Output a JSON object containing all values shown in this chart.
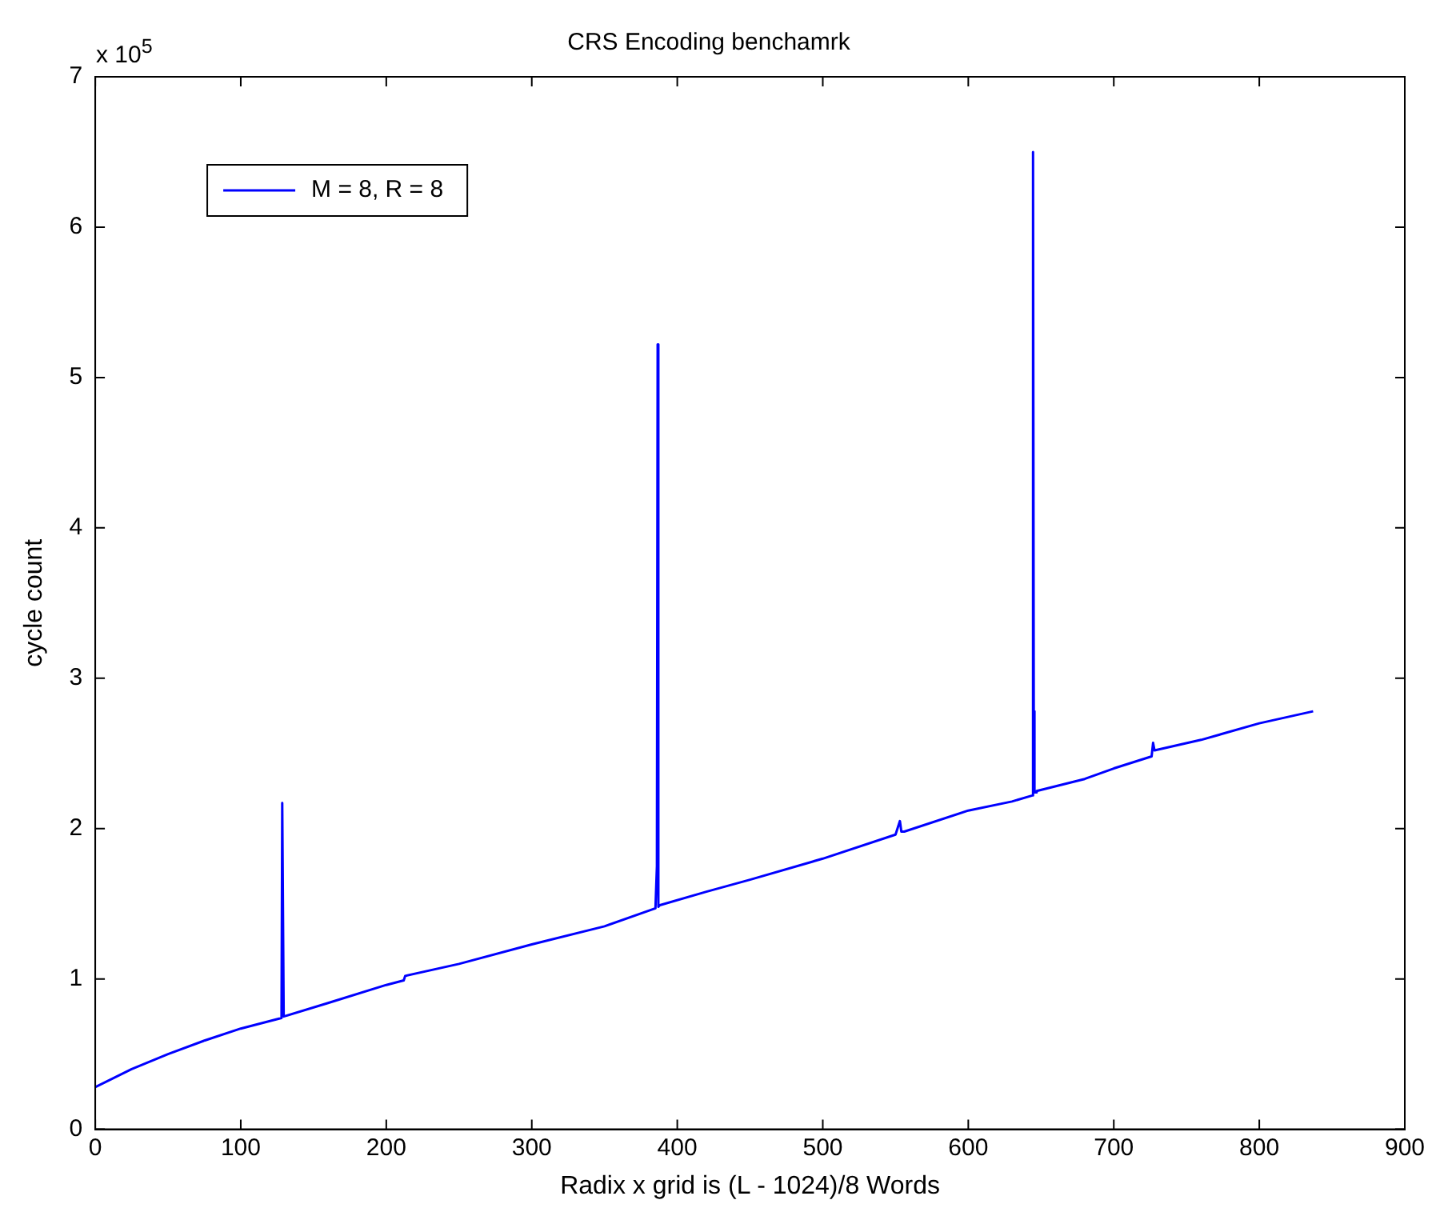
{
  "chart_data": {
    "type": "line",
    "title": "CRS Encoding benchamrk",
    "xlabel": "Radix x grid is (L - 1024)/8 Words",
    "ylabel": "cycle count",
    "annotations": [
      "x 10$^{5}$"
    ],
    "xlim": [
      0,
      900
    ],
    "xticks": [
      0,
      100,
      200,
      300,
      400,
      500,
      600,
      700,
      800,
      900
    ],
    "ylim": [
      0,
      7
    ],
    "yticks": [
      0,
      1,
      2,
      3,
      4,
      5,
      6,
      7
    ],
    "grid": false,
    "legend": "top left",
    "marker": "none",
    "line_style": "solid",
    "series": [
      {
        "name": "M = 8, R = 8",
        "color": "#0000ff",
        "x": [
          0,
          25,
          50,
          75,
          100,
          128,
          128.5,
          129,
          129.5,
          130,
          160,
          200,
          212,
          213,
          250,
          300,
          350,
          385,
          386,
          386.5,
          387,
          388,
          420,
          450,
          500,
          550,
          553,
          554,
          556,
          600,
          630,
          644,
          644.5,
          645,
          645.5,
          646,
          647,
          680,
          700,
          726,
          727,
          728,
          760,
          800,
          837
        ],
        "values": [
          0.28,
          0.4,
          0.5,
          0.59,
          0.67,
          0.74,
          2.17,
          2.17,
          0.75,
          0.75,
          0.84,
          0.96,
          0.99,
          1.02,
          1.1,
          1.23,
          1.35,
          1.47,
          1.75,
          5.22,
          1.48,
          1.49,
          1.58,
          1.66,
          1.8,
          1.96,
          2.05,
          1.98,
          1.98,
          2.12,
          2.18,
          2.22,
          6.5,
          2.78,
          2.24,
          2.24,
          2.25,
          2.33,
          2.4,
          2.48,
          2.57,
          2.52,
          2.59,
          2.7,
          2.78
        ]
      }
    ]
  }
}
